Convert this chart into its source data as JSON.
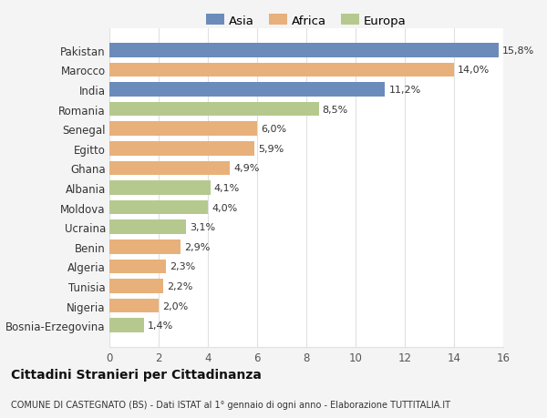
{
  "categories": [
    "Bosnia-Erzegovina",
    "Nigeria",
    "Tunisia",
    "Algeria",
    "Benin",
    "Ucraina",
    "Moldova",
    "Albania",
    "Ghana",
    "Egitto",
    "Senegal",
    "Romania",
    "India",
    "Marocco",
    "Pakistan"
  ],
  "values": [
    1.4,
    2.0,
    2.2,
    2.3,
    2.9,
    3.1,
    4.0,
    4.1,
    4.9,
    5.9,
    6.0,
    8.5,
    11.2,
    14.0,
    15.8
  ],
  "bar_colors": [
    "#b5c98e",
    "#e8b07a",
    "#e8b07a",
    "#e8b07a",
    "#e8b07a",
    "#b5c98e",
    "#b5c98e",
    "#b5c98e",
    "#e8b07a",
    "#e8b07a",
    "#e8b07a",
    "#b5c98e",
    "#6b8cba",
    "#e8b07a",
    "#6b8cba"
  ],
  "labels": [
    "1,4%",
    "2,0%",
    "2,2%",
    "2,3%",
    "2,9%",
    "3,1%",
    "4,0%",
    "4,1%",
    "4,9%",
    "5,9%",
    "6,0%",
    "8,5%",
    "11,2%",
    "14,0%",
    "15,8%"
  ],
  "xlim": [
    0,
    16
  ],
  "xticks": [
    0,
    2,
    4,
    6,
    8,
    10,
    12,
    14,
    16
  ],
  "title": "Cittadini Stranieri per Cittadinanza",
  "subtitle": "COMUNE DI CASTEGNATO (BS) - Dati ISTAT al 1° gennaio di ogni anno - Elaborazione TUTTITALIA.IT",
  "legend_labels": [
    "Asia",
    "Africa",
    "Europa"
  ],
  "legend_colors": [
    "#6b8cba",
    "#e8b07a",
    "#b5c98e"
  ],
  "background_color": "#f4f4f4",
  "plot_background": "#ffffff",
  "grid_color": "#e0e0e0"
}
